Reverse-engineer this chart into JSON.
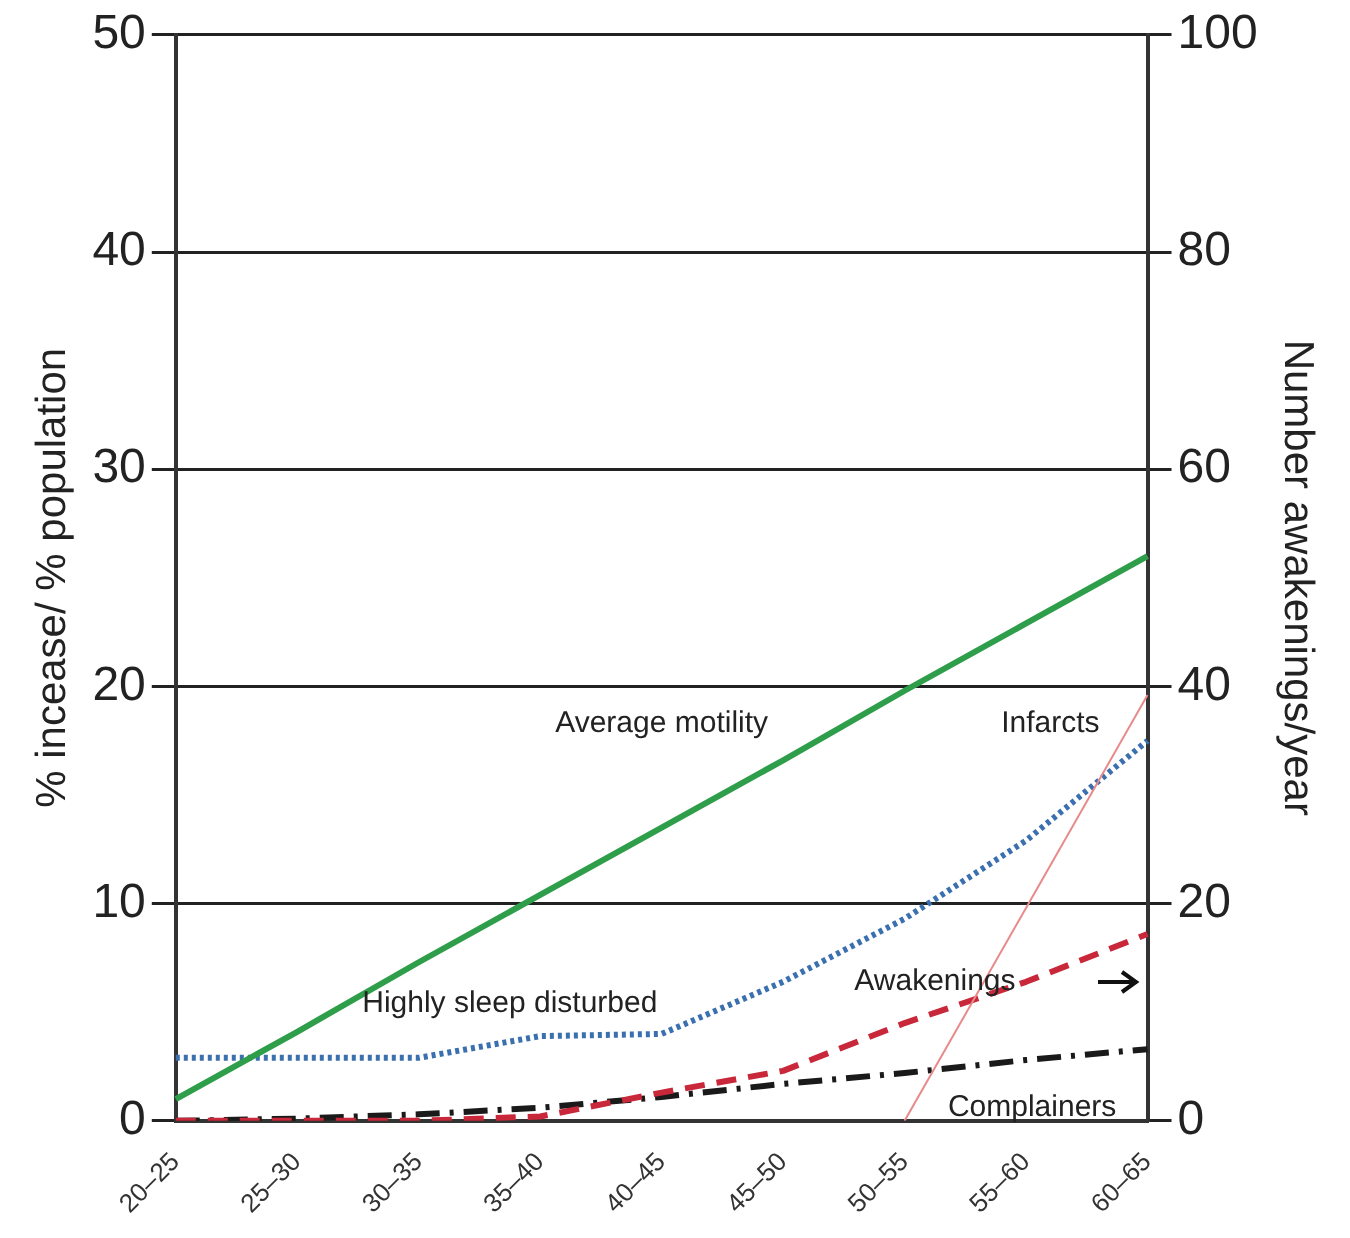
{
  "chart_data": {
    "type": "line",
    "ylabel": "% incease/ % population",
    "y2label": "Number awakenings/year",
    "categories": [
      "20–25",
      "25–30",
      "30–35",
      "35–40",
      "40–45",
      "45–50",
      "50–55",
      "55–60",
      "60–65"
    ],
    "ylim": [
      0,
      50
    ],
    "yticks": [
      0,
      10,
      20,
      30,
      40,
      50
    ],
    "y2lim": [
      0,
      100
    ],
    "y2ticks": [
      0,
      20,
      40,
      60,
      80,
      100
    ],
    "grid": "y",
    "legend": false,
    "marker": "none",
    "series": [
      {
        "name": "Average motility",
        "color": "#2e9e4a",
        "line_style": "solid",
        "values": [
          1,
          4.1,
          7.3,
          10.4,
          13.5,
          16.6,
          19.8,
          22.9,
          26
        ]
      },
      {
        "name": "Infarcts",
        "color": "#e88a8a",
        "line_style": "solid",
        "values": [
          null,
          null,
          null,
          null,
          null,
          null,
          0,
          9.8,
          19.6
        ]
      },
      {
        "name": "Highly sleep disturbed",
        "color": "#3a6fb0",
        "line_style": "dotted",
        "values": [
          2.9,
          2.9,
          2.9,
          3.9,
          4,
          6.4,
          9.3,
          12.9,
          17.5
        ]
      },
      {
        "name": "Awakenings",
        "color": "#c8283a",
        "line_style": "dashed",
        "axis": "y2",
        "values": [
          0,
          0,
          0,
          0.4,
          2.6,
          4.6,
          9,
          12.8,
          17.2
        ]
      },
      {
        "name": "Complainers",
        "color": "#1a1a1a",
        "line_style": "dashdot",
        "values": [
          0,
          0.1,
          0.3,
          0.6,
          1.1,
          1.7,
          2.2,
          2.8,
          3.3
        ]
      }
    ]
  }
}
